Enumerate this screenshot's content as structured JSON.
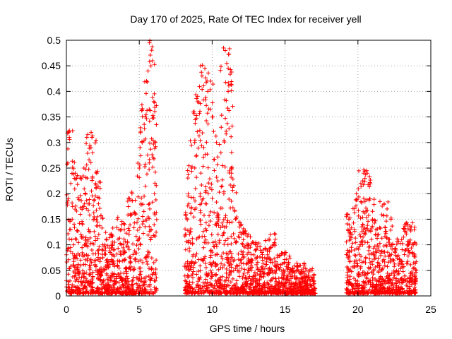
{
  "chart_data": {
    "type": "scatter",
    "title": "Day 170 of 2025, Rate Of TEC Index for receiver yell",
    "xlabel": "GPS time / hours",
    "ylabel": "ROTI / TECUs",
    "xlim": [
      0,
      25
    ],
    "ylim": [
      0,
      0.5
    ],
    "x_ticks": [
      0,
      5,
      10,
      15,
      20,
      25
    ],
    "x_tick_labels": [
      "0",
      "5",
      "10",
      "15",
      "20",
      "25"
    ],
    "y_ticks": [
      0,
      0.05,
      0.1,
      0.15,
      0.2,
      0.25,
      0.3,
      0.35,
      0.4,
      0.45,
      0.5
    ],
    "y_tick_labels": [
      "0",
      "0.05",
      "0.1",
      "0.15",
      "0.2",
      "0.25",
      "0.3",
      "0.35",
      "0.4",
      "0.45",
      "0.5"
    ],
    "grid": true,
    "marker": "+",
    "marker_color": "#ff0000",
    "series": [
      {
        "name": "ROTI",
        "points": [
          [
            0.0,
            0.03
          ],
          [
            0.1,
            0.26
          ],
          [
            0.15,
            0.32
          ],
          [
            0.2,
            0.31
          ],
          [
            0.3,
            0.22
          ],
          [
            0.4,
            0.15
          ],
          [
            0.5,
            0.1
          ],
          [
            0.6,
            0.24
          ],
          [
            0.7,
            0.23
          ],
          [
            0.9,
            0.08
          ],
          [
            1.0,
            0.12
          ],
          [
            1.2,
            0.25
          ],
          [
            1.3,
            0.2
          ],
          [
            1.5,
            0.18
          ],
          [
            1.7,
            0.32
          ],
          [
            1.75,
            0.31
          ],
          [
            1.8,
            0.28
          ],
          [
            2.0,
            0.22
          ],
          [
            2.2,
            0.18
          ],
          [
            2.5,
            0.1
          ],
          [
            2.8,
            0.06
          ],
          [
            3.0,
            0.12
          ],
          [
            3.2,
            0.08
          ],
          [
            3.5,
            0.15
          ],
          [
            3.8,
            0.1
          ],
          [
            4.0,
            0.14
          ],
          [
            4.3,
            0.12
          ],
          [
            4.5,
            0.2
          ],
          [
            4.7,
            0.16
          ],
          [
            5.0,
            0.25
          ],
          [
            5.2,
            0.3
          ],
          [
            5.4,
            0.35
          ],
          [
            5.5,
            0.42
          ],
          [
            5.6,
            0.44
          ],
          [
            5.7,
            0.495
          ],
          [
            5.8,
            0.45
          ],
          [
            5.9,
            0.46
          ],
          [
            6.0,
            0.38
          ],
          [
            6.1,
            0.3
          ],
          [
            8.2,
            0.12
          ],
          [
            8.4,
            0.18
          ],
          [
            8.6,
            0.25
          ],
          [
            8.8,
            0.3
          ],
          [
            9.0,
            0.38
          ],
          [
            9.2,
            0.45
          ],
          [
            9.3,
            0.43
          ],
          [
            9.5,
            0.445
          ],
          [
            9.7,
            0.4
          ],
          [
            9.9,
            0.42
          ],
          [
            10.0,
            0.35
          ],
          [
            10.3,
            0.3
          ],
          [
            10.6,
            0.28
          ],
          [
            10.8,
            0.2
          ],
          [
            10.9,
            0.48
          ],
          [
            11.0,
            0.455
          ],
          [
            11.1,
            0.4
          ],
          [
            11.3,
            0.25
          ],
          [
            11.6,
            0.15
          ],
          [
            12.0,
            0.14
          ],
          [
            12.5,
            0.12
          ],
          [
            13.0,
            0.1
          ],
          [
            13.5,
            0.09
          ],
          [
            14.0,
            0.12
          ],
          [
            14.5,
            0.08
          ],
          [
            15.0,
            0.085
          ],
          [
            15.5,
            0.05
          ],
          [
            16.0,
            0.06
          ],
          [
            16.5,
            0.05
          ],
          [
            17.0,
            0.04
          ],
          [
            19.3,
            0.16
          ],
          [
            19.6,
            0.12
          ],
          [
            19.9,
            0.2
          ],
          [
            20.2,
            0.22
          ],
          [
            20.4,
            0.24
          ],
          [
            20.6,
            0.245
          ],
          [
            20.8,
            0.19
          ],
          [
            21.0,
            0.15
          ],
          [
            21.4,
            0.12
          ],
          [
            21.8,
            0.18
          ],
          [
            22.0,
            0.17
          ],
          [
            22.3,
            0.1
          ],
          [
            22.6,
            0.09
          ],
          [
            23.0,
            0.11
          ],
          [
            23.4,
            0.14
          ],
          [
            23.6,
            0.13
          ],
          [
            23.8,
            0.1
          ],
          [
            24.0,
            0.05
          ]
        ]
      }
    ],
    "coverage_intervals_hours": [
      [
        0,
        6.2
      ],
      [
        8.1,
        17.1
      ],
      [
        19.2,
        24.0
      ]
    ]
  }
}
